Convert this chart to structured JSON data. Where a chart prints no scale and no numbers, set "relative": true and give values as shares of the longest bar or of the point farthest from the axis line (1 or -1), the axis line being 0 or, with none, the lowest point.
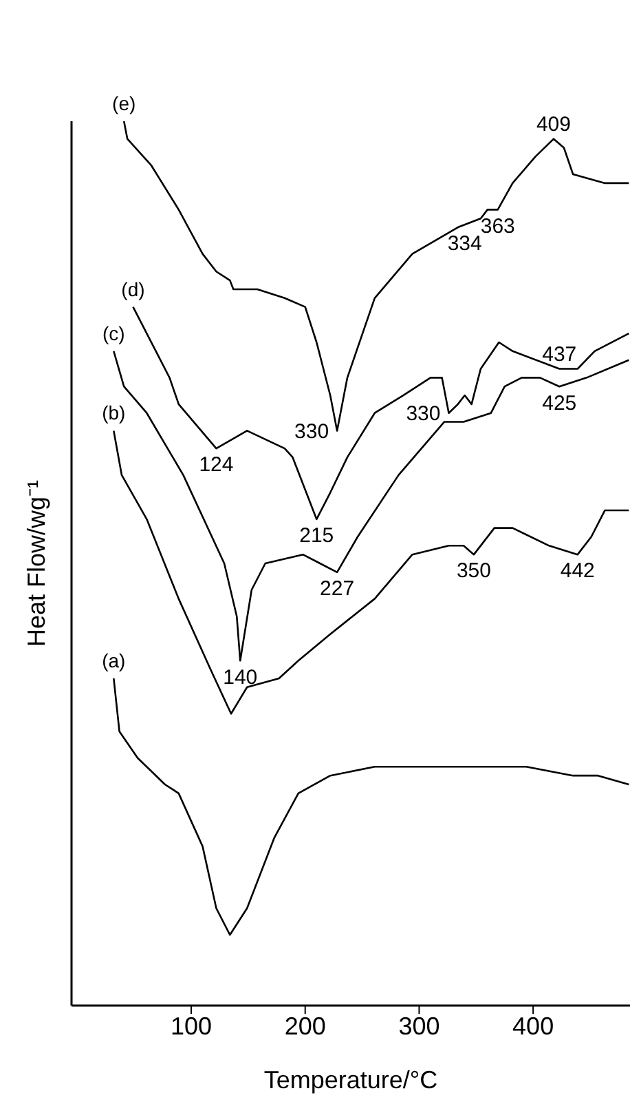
{
  "chart_data": {
    "type": "line",
    "relative": true,
    "xlabel": "Temperature/°C",
    "ylabel": "Heat Flow/wg⁻¹",
    "xlim": [
      -5,
      485
    ],
    "xticks": [
      100,
      200,
      300,
      400
    ],
    "series": [
      {
        "name": "(a)",
        "color": "#000000",
        "x": [
          32,
          37,
          53,
          77,
          89,
          110,
          122,
          134,
          149,
          173,
          194,
          222,
          261,
          342,
          394,
          435,
          447,
          457,
          484
        ],
        "values": [
          0.37,
          0.31,
          0.28,
          0.25,
          0.24,
          0.18,
          0.11,
          0.08,
          0.11,
          0.19,
          0.24,
          0.26,
          0.27,
          0.27,
          0.27,
          0.26,
          0.26,
          0.26,
          0.25
        ]
      },
      {
        "name": "(b)",
        "color": "#000000",
        "x": [
          32,
          39,
          61,
          89,
          117,
          135,
          149,
          177,
          194,
          222,
          261,
          294,
          326,
          339,
          348,
          366,
          382,
          414,
          439,
          451,
          463,
          484
        ],
        "values": [
          0.65,
          0.6,
          0.55,
          0.46,
          0.38,
          0.33,
          0.36,
          0.37,
          0.39,
          0.42,
          0.46,
          0.51,
          0.52,
          0.52,
          0.51,
          0.54,
          0.54,
          0.52,
          0.51,
          0.53,
          0.56,
          0.56
        ]
      },
      {
        "name": "(c)",
        "color": "#000000",
        "x": [
          32,
          41,
          61,
          93,
          129,
          140,
          143,
          153,
          165,
          198,
          213,
          228,
          246,
          282,
          322,
          339,
          363,
          375,
          390,
          406,
          423,
          447,
          484
        ],
        "values": [
          0.74,
          0.7,
          0.67,
          0.6,
          0.5,
          0.44,
          0.39,
          0.47,
          0.5,
          0.51,
          0.5,
          0.49,
          0.53,
          0.6,
          0.66,
          0.66,
          0.67,
          0.7,
          0.71,
          0.71,
          0.7,
          0.71,
          0.73
        ]
      },
      {
        "name": "(d)",
        "color": "#000000",
        "x": [
          49,
          81,
          89,
          122,
          149,
          182,
          189,
          210,
          222,
          237,
          261,
          286,
          310,
          320,
          326,
          334,
          340,
          346,
          354,
          370,
          382,
          423,
          439,
          454,
          484
        ],
        "values": [
          0.79,
          0.71,
          0.68,
          0.63,
          0.65,
          0.63,
          0.62,
          0.55,
          0.58,
          0.62,
          0.67,
          0.69,
          0.71,
          0.71,
          0.67,
          0.68,
          0.69,
          0.68,
          0.72,
          0.75,
          0.74,
          0.72,
          0.72,
          0.74,
          0.76
        ]
      },
      {
        "name": "(e)",
        "color": "#000000",
        "x": [
          41,
          44,
          65,
          89,
          110,
          122,
          134,
          137,
          158,
          182,
          200,
          210,
          222,
          228,
          237,
          261,
          294,
          334,
          354,
          360,
          369,
          382,
          402,
          418,
          427,
          435,
          463,
          484
        ],
        "values": [
          1.0,
          0.98,
          0.95,
          0.9,
          0.85,
          0.83,
          0.82,
          0.81,
          0.81,
          0.8,
          0.79,
          0.75,
          0.69,
          0.65,
          0.71,
          0.8,
          0.85,
          0.88,
          0.89,
          0.9,
          0.9,
          0.93,
          0.96,
          0.98,
          0.97,
          0.94,
          0.93,
          0.93
        ]
      }
    ],
    "annotations": [
      {
        "text": "409",
        "x": 418,
        "y": 0.98
      },
      {
        "text": "363",
        "x": 369,
        "y": 0.9
      },
      {
        "text": "334",
        "x": 340,
        "y": 0.88
      },
      {
        "text": "330",
        "x": 228,
        "y": 0.65
      },
      {
        "text": "330",
        "x": 326,
        "y": 0.67
      },
      {
        "text": "437",
        "x": 423,
        "y": 0.72
      },
      {
        "text": "425",
        "x": 423,
        "y": 0.7
      },
      {
        "text": "124",
        "x": 122,
        "y": 0.63
      },
      {
        "text": "215",
        "x": 210,
        "y": 0.55
      },
      {
        "text": "227",
        "x": 228,
        "y": 0.49
      },
      {
        "text": "140",
        "x": 143,
        "y": 0.39
      },
      {
        "text": "350",
        "x": 348,
        "y": 0.51
      },
      {
        "text": "442",
        "x": 439,
        "y": 0.51
      }
    ]
  }
}
